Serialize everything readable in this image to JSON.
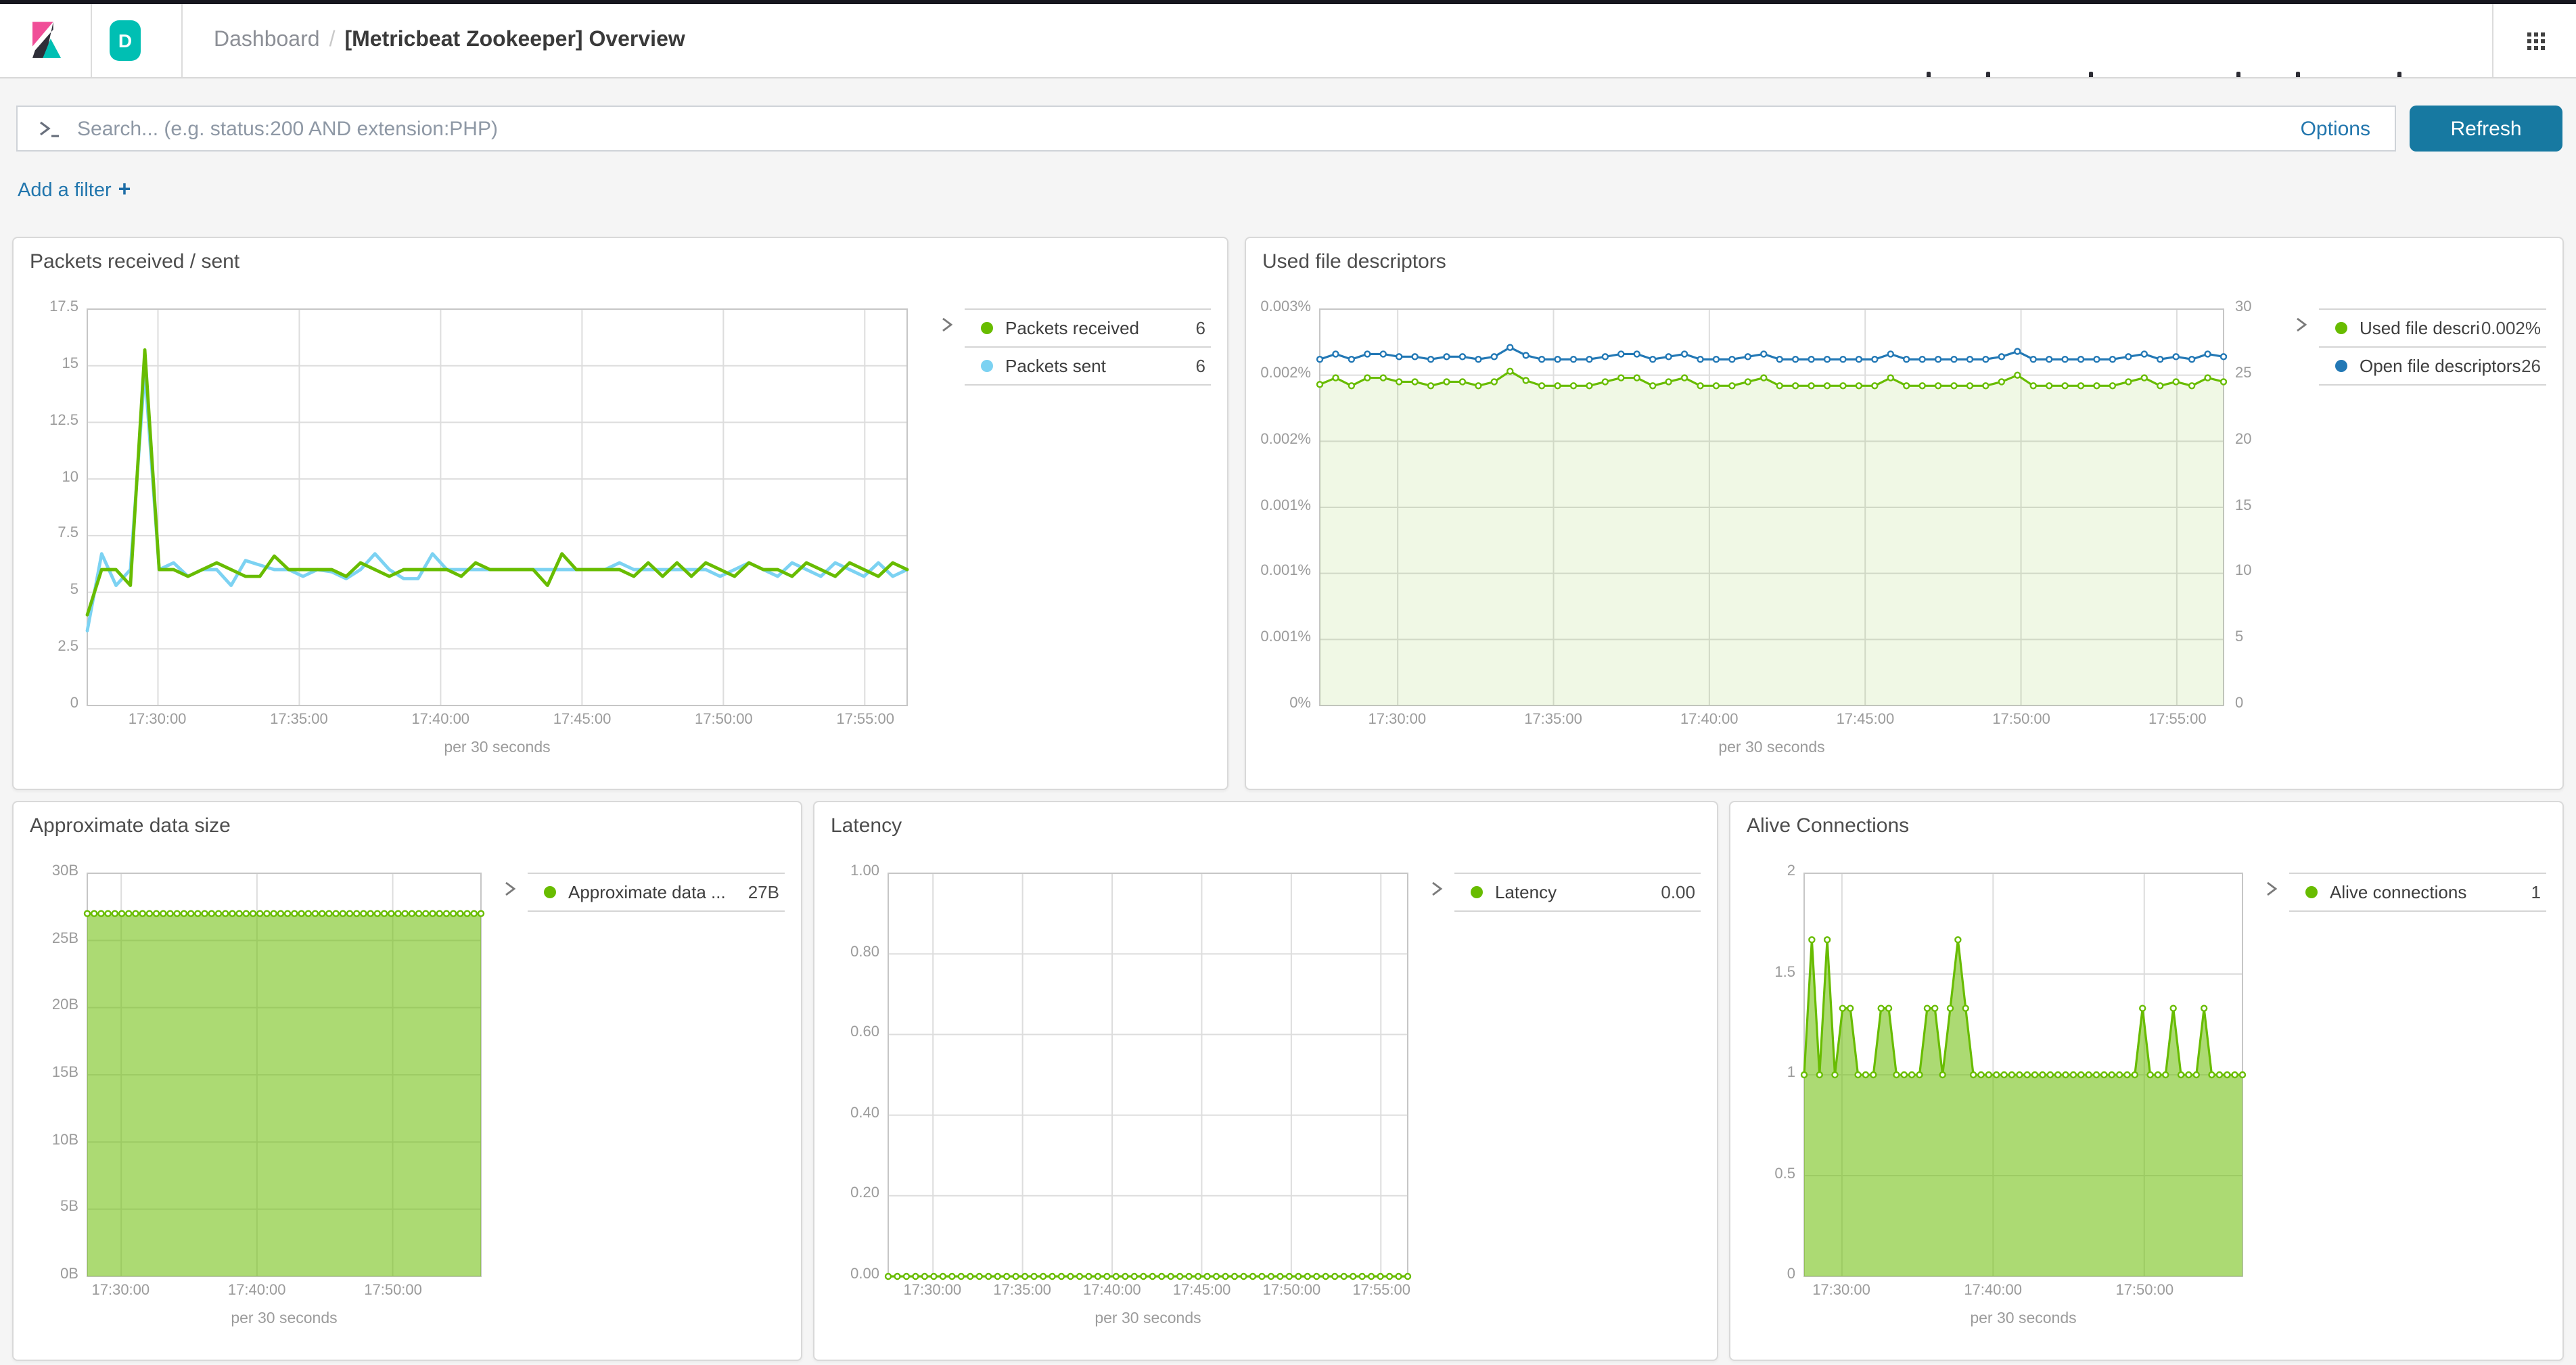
{
  "header": {
    "space_badge": "D",
    "breadcrumb_section": "Dashboard",
    "breadcrumb_separator": "/",
    "breadcrumb_title": "[Metricbeat Zookeeper] Overview"
  },
  "search": {
    "placeholder": "Search... (e.g. status:200 AND extension:PHP)",
    "options_label": "Options",
    "refresh_label": "Refresh"
  },
  "filter_bar": {
    "add_filter_label": "Add a filter",
    "plus": "+"
  },
  "colors": {
    "green": "#68BC00",
    "sky_blue": "#7CD2F2",
    "blue": "#2278B5",
    "link_blue": "#2276AD",
    "refresh_button": "#1779A1",
    "badge_teal": "#00BFB3",
    "logo_pink": "#F04E98",
    "logo_dark": "#2E2E38"
  },
  "chart_data": [
    {
      "type": "line",
      "title": "Packets received / sent",
      "x_domain": [
        "17:27:30",
        "17:56:30"
      ],
      "xticks": [
        "17:30:00",
        "17:35:00",
        "17:40:00",
        "17:45:00",
        "17:50:00",
        "17:55:00"
      ],
      "xlabel": "per 30 seconds",
      "yticks": [
        "17.5",
        "15",
        "12.5",
        "10",
        "7.5",
        "5",
        "2.5",
        "0"
      ],
      "ymin": 0,
      "ymax": 17.5,
      "series": [
        {
          "name": "Packets sent",
          "color": "#7CD2F2",
          "width": 2.4,
          "markers": false,
          "fill": null,
          "values": [
            3.3,
            6.7,
            5.3,
            6,
            14.8,
            6,
            6.3,
            5.7,
            6,
            6,
            5.3,
            6.4,
            6.2,
            6,
            6,
            5.7,
            6,
            5.9,
            5.6,
            6,
            6.7,
            6,
            5.6,
            5.6,
            6.7,
            6,
            6,
            6,
            6,
            6,
            6,
            6,
            6,
            6,
            6,
            6,
            6,
            6.3,
            6,
            6,
            6,
            6,
            6,
            6,
            5.7,
            6,
            6.3,
            6,
            5.7,
            6.3,
            6,
            5.7,
            6.3,
            6,
            5.7,
            6.3,
            5.7,
            6
          ]
        },
        {
          "name": "Packets received",
          "color": "#68BC00",
          "width": 2.4,
          "markers": false,
          "fill": null,
          "values": [
            4,
            6,
            6,
            5.3,
            15.7,
            6,
            6,
            5.7,
            6,
            6.3,
            6,
            5.7,
            5.7,
            6.6,
            6,
            6,
            6,
            6,
            5.7,
            6.3,
            6,
            5.7,
            6,
            6,
            6,
            6,
            5.7,
            6.3,
            6,
            6,
            6,
            6,
            5.3,
            6.7,
            6,
            6,
            6,
            6,
            5.7,
            6.3,
            5.7,
            6.3,
            5.7,
            6.3,
            6,
            5.7,
            6.3,
            6,
            6,
            5.7,
            6.3,
            6,
            5.7,
            6.3,
            6,
            5.7,
            6.3,
            6
          ]
        }
      ],
      "legend": [
        {
          "label": "Packets received",
          "value": "6",
          "color": "#68BC00"
        },
        {
          "label": "Packets sent",
          "value": "6",
          "color": "#7CD2F2"
        }
      ]
    },
    {
      "type": "line",
      "title": "Used file descriptors",
      "x_domain": [
        "17:27:30",
        "17:56:30"
      ],
      "xticks": [
        "17:30:00",
        "17:35:00",
        "17:40:00",
        "17:45:00",
        "17:50:00",
        "17:55:00"
      ],
      "xlabel": "per 30 seconds",
      "yticks": [
        "0.003%",
        "0.002%",
        "0.002%",
        "0.001%",
        "0.001%",
        "0.001%",
        "0%"
      ],
      "right_yticks": [
        "30",
        "25",
        "20",
        "15",
        "10",
        "5",
        "0"
      ],
      "ymin": 0,
      "ymax": 0.003,
      "series": [
        {
          "name": "Used file descriptors",
          "color": "#68BC00",
          "width": 1.6,
          "markers": true,
          "fill": "rgba(104,188,0,0.10)",
          "values": [
            0.00243,
            0.00248,
            0.00242,
            0.00248,
            0.00248,
            0.00245,
            0.00245,
            0.00242,
            0.00245,
            0.00245,
            0.00242,
            0.00245,
            0.00253,
            0.00246,
            0.00242,
            0.00242,
            0.00242,
            0.00242,
            0.00245,
            0.00248,
            0.00248,
            0.00242,
            0.00245,
            0.00248,
            0.00242,
            0.00242,
            0.00242,
            0.00245,
            0.00248,
            0.00242,
            0.00242,
            0.00242,
            0.00242,
            0.00242,
            0.00242,
            0.00242,
            0.00248,
            0.00242,
            0.00242,
            0.00242,
            0.00242,
            0.00242,
            0.00242,
            0.00245,
            0.0025,
            0.00242,
            0.00242,
            0.00242,
            0.00242,
            0.00242,
            0.00242,
            0.00245,
            0.00248,
            0.00242,
            0.00245,
            0.00242,
            0.00248,
            0.00245
          ]
        },
        {
          "name": "Open file descriptors",
          "color": "#2278B5",
          "width": 1.6,
          "markers": true,
          "fill": null,
          "ymax": 30,
          "values": [
            26.2,
            26.6,
            26.2,
            26.6,
            26.6,
            26.4,
            26.4,
            26.2,
            26.4,
            26.4,
            26.2,
            26.4,
            27.1,
            26.5,
            26.2,
            26.2,
            26.2,
            26.2,
            26.4,
            26.6,
            26.6,
            26.2,
            26.4,
            26.6,
            26.2,
            26.2,
            26.2,
            26.4,
            26.6,
            26.2,
            26.2,
            26.2,
            26.2,
            26.2,
            26.2,
            26.2,
            26.6,
            26.2,
            26.2,
            26.2,
            26.2,
            26.2,
            26.2,
            26.4,
            26.8,
            26.2,
            26.2,
            26.2,
            26.2,
            26.2,
            26.2,
            26.4,
            26.6,
            26.2,
            26.4,
            26.2,
            26.6,
            26.4
          ]
        }
      ],
      "legend": [
        {
          "label": "Used file descri...",
          "value": "0.002%",
          "color": "#68BC00"
        },
        {
          "label": "Open file descriptors",
          "value": "26",
          "color": "#2278B5"
        }
      ]
    },
    {
      "type": "area",
      "title": "Approximate data size",
      "x_domain": [
        "17:27:30",
        "17:56:30"
      ],
      "xticks": [
        "17:30:00",
        "17:40:00",
        "17:50:00"
      ],
      "xlabel": "per 30 seconds",
      "yticks": [
        "30B",
        "25B",
        "20B",
        "15B",
        "10B",
        "5B",
        "0B"
      ],
      "ymin": 0,
      "ymax": 30,
      "series": [
        {
          "name": "Approximate data size",
          "color": "#68BC00",
          "width": 1.6,
          "markers": true,
          "fill": "rgba(104,188,0,0.55)",
          "values": [
            27,
            27,
            27,
            27,
            27,
            27,
            27,
            27,
            27,
            27,
            27,
            27,
            27,
            27,
            27,
            27,
            27,
            27,
            27,
            27,
            27,
            27,
            27,
            27,
            27,
            27,
            27,
            27,
            27,
            27,
            27,
            27,
            27,
            27,
            27,
            27,
            27,
            27,
            27,
            27,
            27,
            27,
            27,
            27,
            27,
            27,
            27,
            27,
            27,
            27,
            27,
            27,
            27,
            27,
            27,
            27,
            27,
            27
          ]
        }
      ],
      "legend": [
        {
          "label": "Approximate data ...",
          "value": "27B",
          "color": "#68BC00"
        }
      ]
    },
    {
      "type": "line",
      "title": "Latency",
      "x_domain": [
        "17:27:30",
        "17:56:30"
      ],
      "xticks": [
        "17:30:00",
        "17:35:00",
        "17:40:00",
        "17:45:00",
        "17:50:00",
        "17:55:00"
      ],
      "xlabel": "per 30 seconds",
      "yticks": [
        "1.00",
        "0.80",
        "0.60",
        "0.40",
        "0.20",
        "0.00"
      ],
      "ymin": 0,
      "ymax": 1,
      "series": [
        {
          "name": "Latency",
          "color": "#68BC00",
          "width": 1.6,
          "markers": true,
          "fill": null,
          "values": [
            0,
            0,
            0,
            0,
            0,
            0,
            0,
            0,
            0,
            0,
            0,
            0,
            0,
            0,
            0,
            0,
            0,
            0,
            0,
            0,
            0,
            0,
            0,
            0,
            0,
            0,
            0,
            0,
            0,
            0,
            0,
            0,
            0,
            0,
            0,
            0,
            0,
            0,
            0,
            0,
            0,
            0,
            0,
            0,
            0,
            0,
            0,
            0,
            0,
            0,
            0,
            0,
            0,
            0,
            0,
            0,
            0,
            0
          ]
        }
      ],
      "legend": [
        {
          "label": "Latency",
          "value": "0.00",
          "color": "#68BC00"
        }
      ]
    },
    {
      "type": "area",
      "title": "Alive Connections",
      "x_domain": [
        "17:27:30",
        "17:56:30"
      ],
      "xticks": [
        "17:30:00",
        "17:40:00",
        "17:50:00"
      ],
      "xlabel": "per 30 seconds",
      "yticks": [
        "2",
        "1.5",
        "1",
        "0.5",
        "0"
      ],
      "ymin": 0,
      "ymax": 2,
      "series": [
        {
          "name": "Alive connections",
          "color": "#68BC00",
          "width": 1.6,
          "markers": true,
          "fill": "rgba(104,188,0,0.55)",
          "values": [
            1,
            1.67,
            1,
            1.67,
            1,
            1.33,
            1.33,
            1,
            1,
            1,
            1.33,
            1.33,
            1,
            1,
            1,
            1,
            1.33,
            1.33,
            1,
            1.33,
            1.67,
            1.33,
            1,
            1,
            1,
            1,
            1,
            1,
            1,
            1,
            1,
            1,
            1,
            1,
            1,
            1,
            1,
            1,
            1,
            1,
            1,
            1,
            1,
            1,
            1.33,
            1,
            1,
            1,
            1.33,
            1,
            1,
            1,
            1.33,
            1,
            1,
            1,
            1,
            1
          ]
        }
      ],
      "legend": [
        {
          "label": "Alive connections",
          "value": "1",
          "color": "#68BC00"
        }
      ]
    }
  ]
}
